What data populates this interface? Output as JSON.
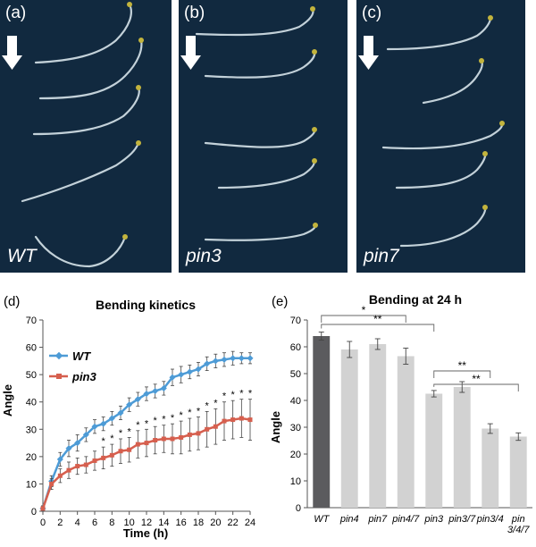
{
  "panels": {
    "a": {
      "label": "(a)",
      "genotype": "WT"
    },
    "b": {
      "label": "(b)",
      "genotype": "pin3"
    },
    "c": {
      "label": "(c)",
      "genotype": "pin7"
    }
  },
  "colors": {
    "photo_background": "#11293f",
    "root": "#d7e4ea",
    "arrow": "#ffffff",
    "wt_series": "#4d9bd6",
    "pin3_series": "#d65f4e",
    "wt_bar": "#5b5b5e",
    "mutant_bar": "#d2d2d2"
  },
  "chart_data": [
    {
      "panel_label": "(d)",
      "type": "line",
      "title": "Bending kinetics",
      "xlabel": "Time (h)",
      "ylabel": "Angle",
      "xlim": [
        0,
        24
      ],
      "ylim": [
        0,
        70
      ],
      "x_ticks": [
        0,
        2,
        4,
        6,
        8,
        10,
        12,
        14,
        16,
        18,
        20,
        22,
        24
      ],
      "y_ticks": [
        0,
        10,
        20,
        30,
        40,
        50,
        60,
        70
      ],
      "x": [
        0,
        1,
        2,
        3,
        4,
        5,
        6,
        7,
        8,
        9,
        10,
        11,
        12,
        13,
        14,
        15,
        16,
        17,
        18,
        19,
        20,
        21,
        22,
        23,
        24
      ],
      "legend_position": "top-left",
      "series": [
        {
          "name": "WT",
          "values": [
            1,
            11,
            19,
            23,
            25,
            28,
            31,
            32,
            34,
            36,
            39,
            41,
            43,
            44,
            45,
            49,
            50,
            51,
            52,
            54,
            55,
            55.5,
            56,
            56,
            56
          ],
          "errors": [
            1,
            2,
            2.5,
            3,
            3,
            2.5,
            2.5,
            2.5,
            2.5,
            2.5,
            2.5,
            2.5,
            2.5,
            2.5,
            2.5,
            3,
            3,
            2.5,
            2.5,
            2.5,
            2.5,
            2.5,
            2.5,
            2,
            2
          ]
        },
        {
          "name": "pin3",
          "values": [
            1,
            10,
            13,
            15,
            16.5,
            17,
            18.5,
            19.5,
            20.5,
            22,
            22.5,
            24.5,
            25,
            26,
            26.5,
            26.5,
            27,
            28,
            28.5,
            30,
            31,
            33,
            33.5,
            34,
            33.5
          ],
          "errors": [
            1,
            2,
            2.5,
            3,
            3,
            3,
            3.5,
            4,
            4,
            4.5,
            4.5,
            5,
            5,
            5,
            5,
            5.5,
            6,
            6,
            6,
            6.5,
            6.5,
            7,
            7,
            7,
            7.5
          ]
        }
      ],
      "significance_marker": "*",
      "significance_at_x": [
        7,
        8,
        9,
        10,
        11,
        12,
        13,
        14,
        15,
        16,
        17,
        18,
        19,
        20,
        21,
        22,
        23,
        24
      ]
    },
    {
      "panel_label": "(e)",
      "type": "bar",
      "title": "Bending at 24 h",
      "xlabel": "",
      "ylabel": "Angle",
      "ylim": [
        0,
        70
      ],
      "y_ticks": [
        0,
        10,
        20,
        30,
        40,
        50,
        60,
        70
      ],
      "categories": [
        "WT",
        "pin4",
        "pin7",
        "pin4/7",
        "pin3",
        "pin3/7",
        "pin3/4",
        "pin\n3/4/7"
      ],
      "values": [
        64,
        59,
        61,
        56.5,
        42.5,
        45,
        29.5,
        26.5
      ],
      "errors": [
        1.5,
        3,
        2,
        3,
        1.2,
        2,
        1.8,
        1.4
      ],
      "significance_brackets": [
        {
          "from": "WT",
          "to": "pin4/7",
          "label": "*"
        },
        {
          "from": "WT",
          "to": "pin3",
          "label": "**"
        },
        {
          "from": "pin3",
          "to": "pin3/4",
          "label": "**"
        },
        {
          "from": "pin3",
          "to": "pin\n3/4/7",
          "label": "**"
        }
      ]
    }
  ]
}
